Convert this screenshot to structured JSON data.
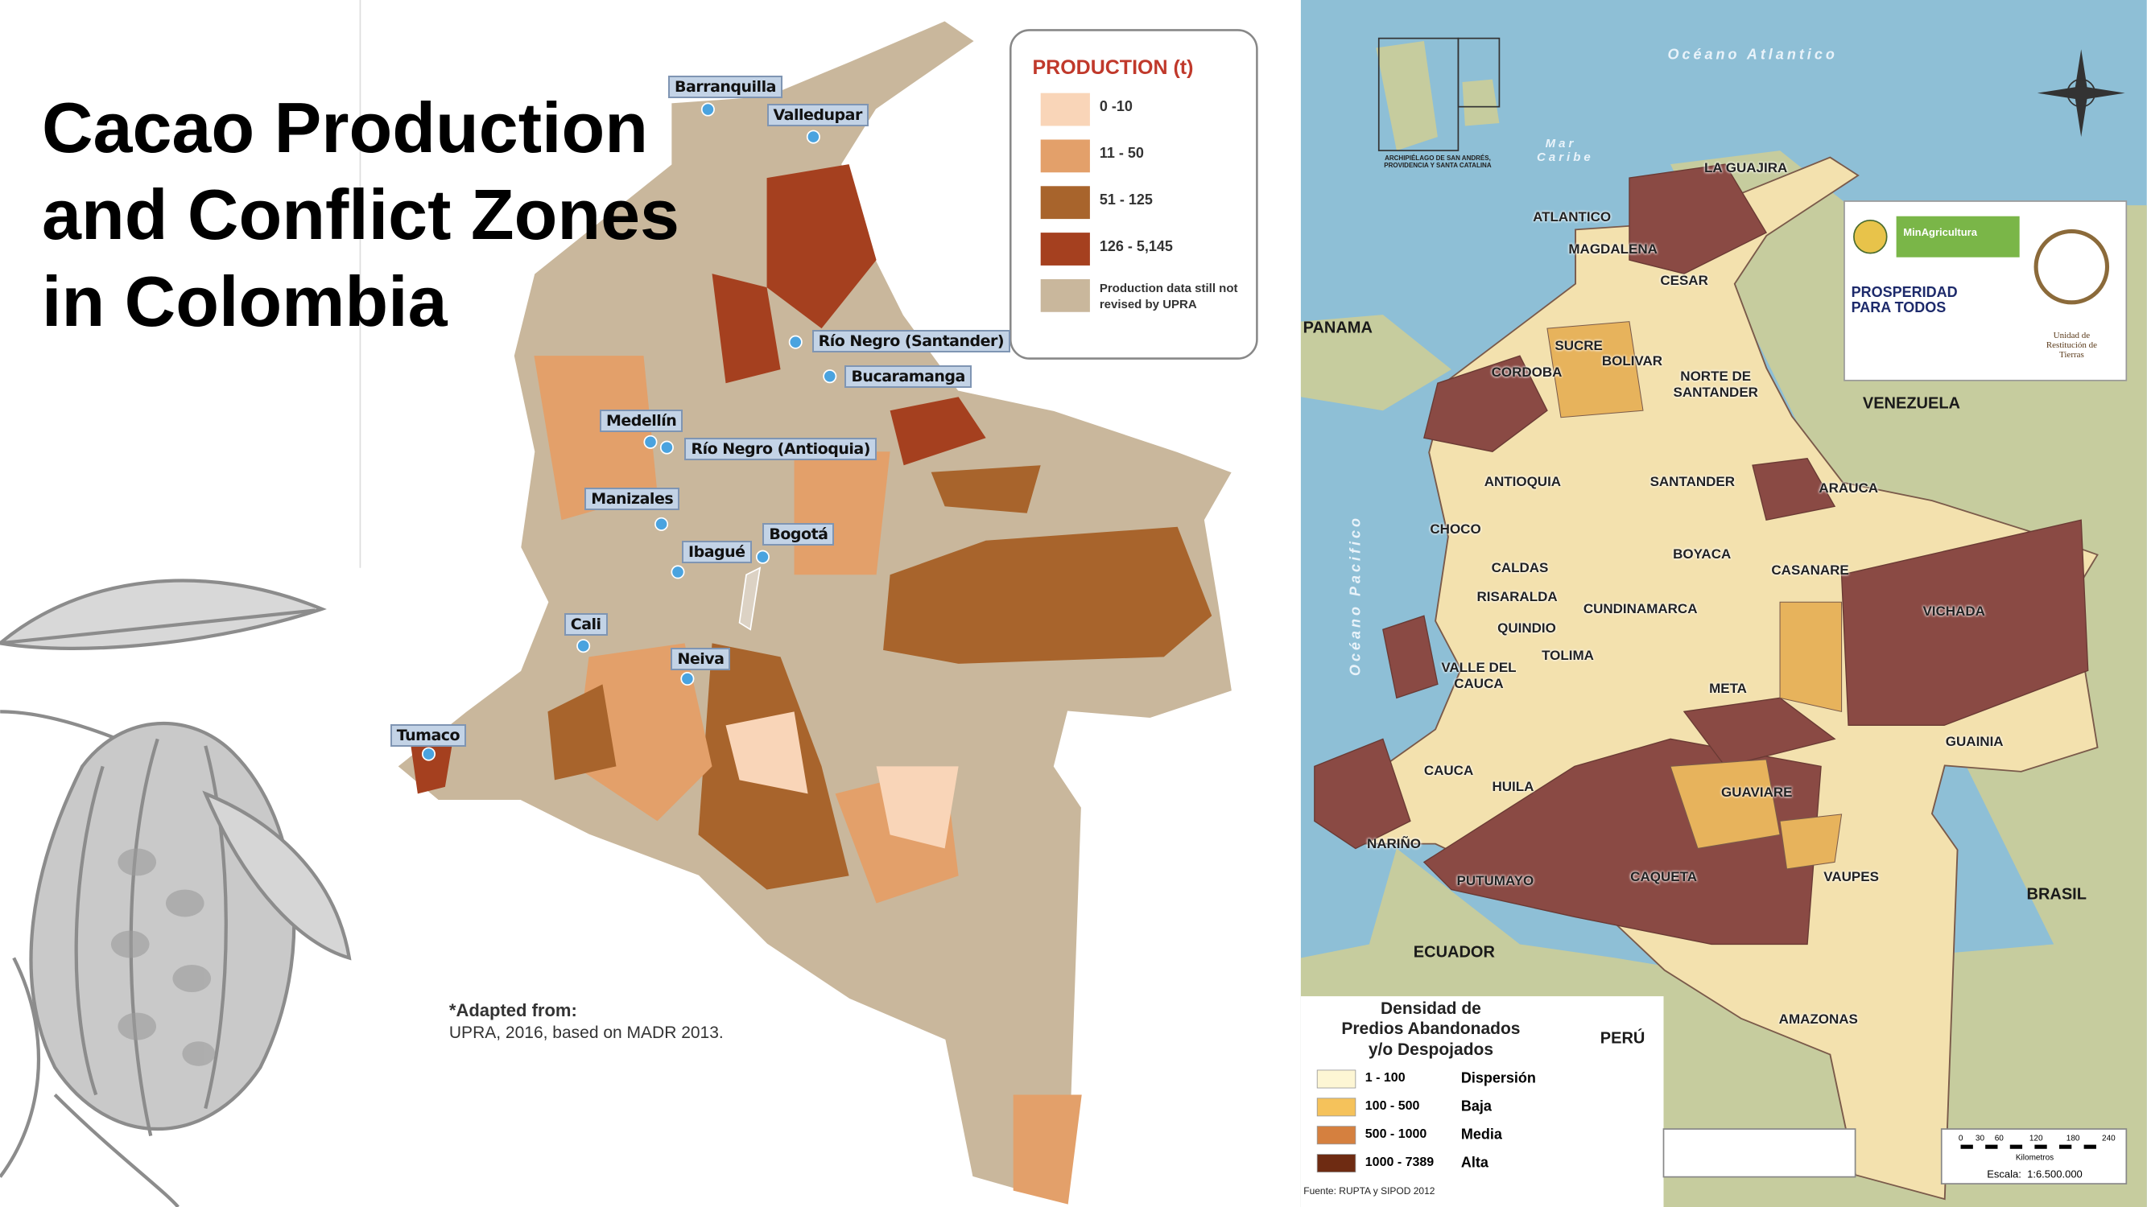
{
  "title": "Cacao Production and Conflict Zones in Colombia",
  "production_map": {
    "legend": {
      "title": "PRODUCTION (t)",
      "items": [
        {
          "label": "0 -10",
          "color": "#f9d5b8"
        },
        {
          "label": "11 - 50",
          "color": "#e3a06a"
        },
        {
          "label": "51 - 125",
          "color": "#a8642c"
        },
        {
          "label": "126 - 5,145",
          "color": "#a5401f"
        },
        {
          "label": "Production data still not revised by UPRA",
          "color": "#c9b79c"
        }
      ]
    },
    "cities": [
      "Barranquilla",
      "Valledupar",
      "Río Negro (Santander)",
      "Bucaramanga",
      "Medellín",
      "Río Negro (Antioquia)",
      "Manizales",
      "Bogotá",
      "Ibagué",
      "Cali",
      "Neiva",
      "Tumaco"
    ],
    "source": {
      "heading": "*Adapted from:",
      "text": "UPRA, 2016, based on MADR 2013."
    }
  },
  "conflict_map": {
    "oceans": [
      "Océano Atlantico",
      "Mar Caribe",
      "Océano Pacifico"
    ],
    "archipelago": "ARCHIPIÉLAGO DE SAN ANDRÉS, PROVIDENCIA Y SANTA CATALINA",
    "countries": [
      "PANAMA",
      "VENEZUELA",
      "BRASIL",
      "ECUADOR",
      "PERÚ"
    ],
    "departments": [
      "LA GUAJIRA",
      "ATLANTICO",
      "MAGDALENA",
      "CESAR",
      "SUCRE",
      "BOLIVAR",
      "NORTE DE SANTANDER",
      "CORDOBA",
      "ANTIOQUIA",
      "SANTANDER",
      "ARAUCA",
      "CHOCO",
      "BOYACA",
      "CASANARE",
      "CALDAS",
      "RISARALDA",
      "CUNDINAMARCA",
      "VICHADA",
      "QUINDIO",
      "TOLIMA",
      "VALLE DEL CAUCA",
      "META",
      "GUAINIA",
      "CAUCA",
      "HUILA",
      "GUAVIARE",
      "NARIÑO",
      "VAUPES",
      "PUTUMAYO",
      "CAQUETA",
      "AMAZONAS"
    ],
    "logos": [
      "MinAgricultura",
      "PROSPERIDAD PARA TODOS",
      "Unidad de Restitución de Tierras"
    ],
    "legend": {
      "title_lines": [
        "Densidad de",
        "Predios Abandonados",
        "y/o Despojados"
      ],
      "items": [
        {
          "range": "1 - 100",
          "class": "Dispersión",
          "color": "#fdf6d4"
        },
        {
          "range": "100 - 500",
          "class": "Baja",
          "color": "#f5c25b"
        },
        {
          "range": "500 - 1000",
          "class": "Media",
          "color": "#d5803f"
        },
        {
          "range": "1000 - 7389",
          "class": "Alta",
          "color": "#6e2b12"
        }
      ]
    },
    "scale": {
      "ticks": [
        "0",
        "30",
        "60",
        "120",
        "180",
        "240"
      ],
      "unit": "Kilometros",
      "text": "Escala:  1:6.500.000"
    },
    "source": "Fuente: RUPTA y SIPOD 2012"
  }
}
